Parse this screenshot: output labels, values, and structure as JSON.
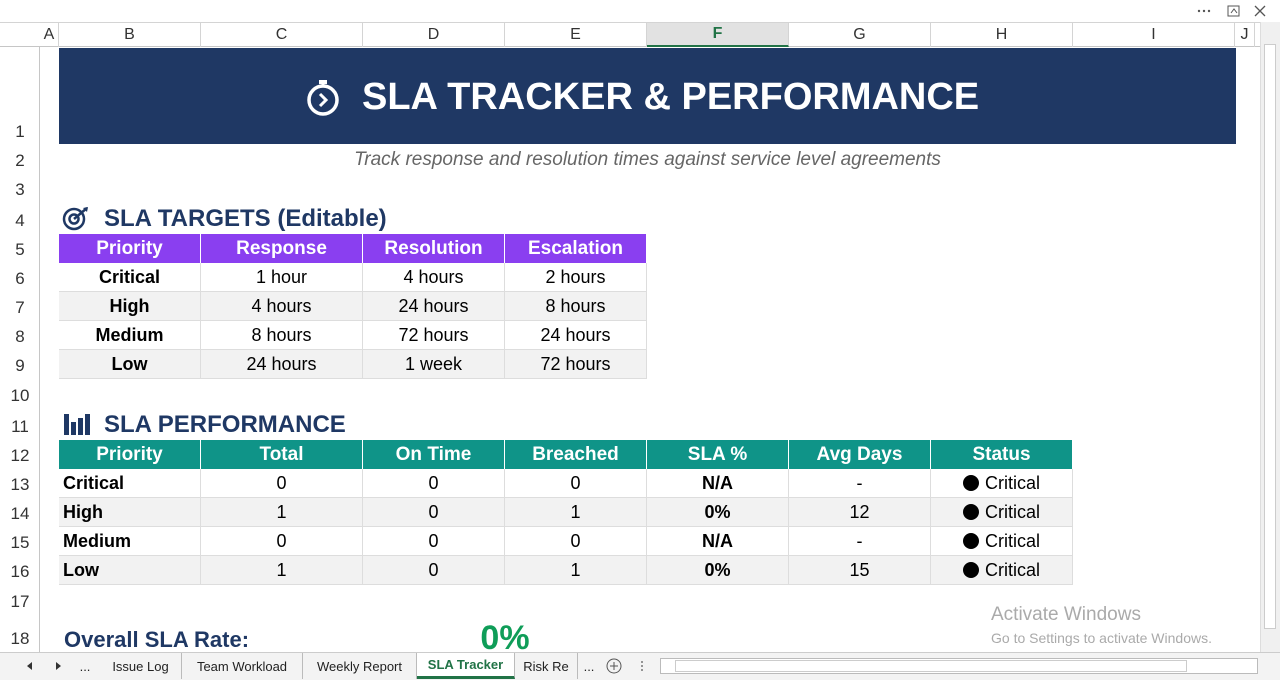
{
  "column_headers": [
    "A",
    "B",
    "C",
    "D",
    "E",
    "F",
    "G",
    "H",
    "I",
    "J"
  ],
  "selected_column": "F",
  "row_headers": [
    "1",
    "2",
    "3",
    "4",
    "5",
    "6",
    "7",
    "8",
    "9",
    "10",
    "11",
    "12",
    "13",
    "14",
    "15",
    "16",
    "17",
    "18"
  ],
  "title": "SLA TRACKER & PERFORMANCE",
  "subtitle": "Track response and resolution times against service level agreements",
  "targets": {
    "heading": "SLA TARGETS (Editable)",
    "columns": [
      "Priority",
      "Response",
      "Resolution",
      "Escalation"
    ],
    "rows": [
      [
        "Critical",
        "1 hour",
        "4 hours",
        "2 hours"
      ],
      [
        "High",
        "4 hours",
        "24 hours",
        "8 hours"
      ],
      [
        "Medium",
        "8 hours",
        "72 hours",
        "24 hours"
      ],
      [
        "Low",
        "24 hours",
        "1 week",
        "72 hours"
      ]
    ]
  },
  "performance": {
    "heading": "SLA PERFORMANCE",
    "columns": [
      "Priority",
      "Total",
      "On Time",
      "Breached",
      "SLA %",
      "Avg Days",
      "Status"
    ],
    "rows": [
      [
        "Critical",
        0,
        0,
        0,
        "N/A",
        "-",
        "Critical"
      ],
      [
        "High",
        1,
        0,
        1,
        "0%",
        12,
        "Critical"
      ],
      [
        "Medium",
        0,
        0,
        0,
        "N/A",
        "-",
        "Critical"
      ],
      [
        "Low",
        1,
        0,
        1,
        "0%",
        15,
        "Critical"
      ]
    ]
  },
  "overall": {
    "label": "Overall SLA Rate:",
    "value": "0%"
  },
  "sheet_tabs": [
    "...",
    "Issue Log",
    "Team Workload",
    "Weekly Report",
    "SLA Tracker",
    "Risk Re",
    "..."
  ],
  "active_tab": "SLA Tracker",
  "watermark": {
    "title": "Activate Windows",
    "text": "Go to Settings to activate Windows."
  }
}
